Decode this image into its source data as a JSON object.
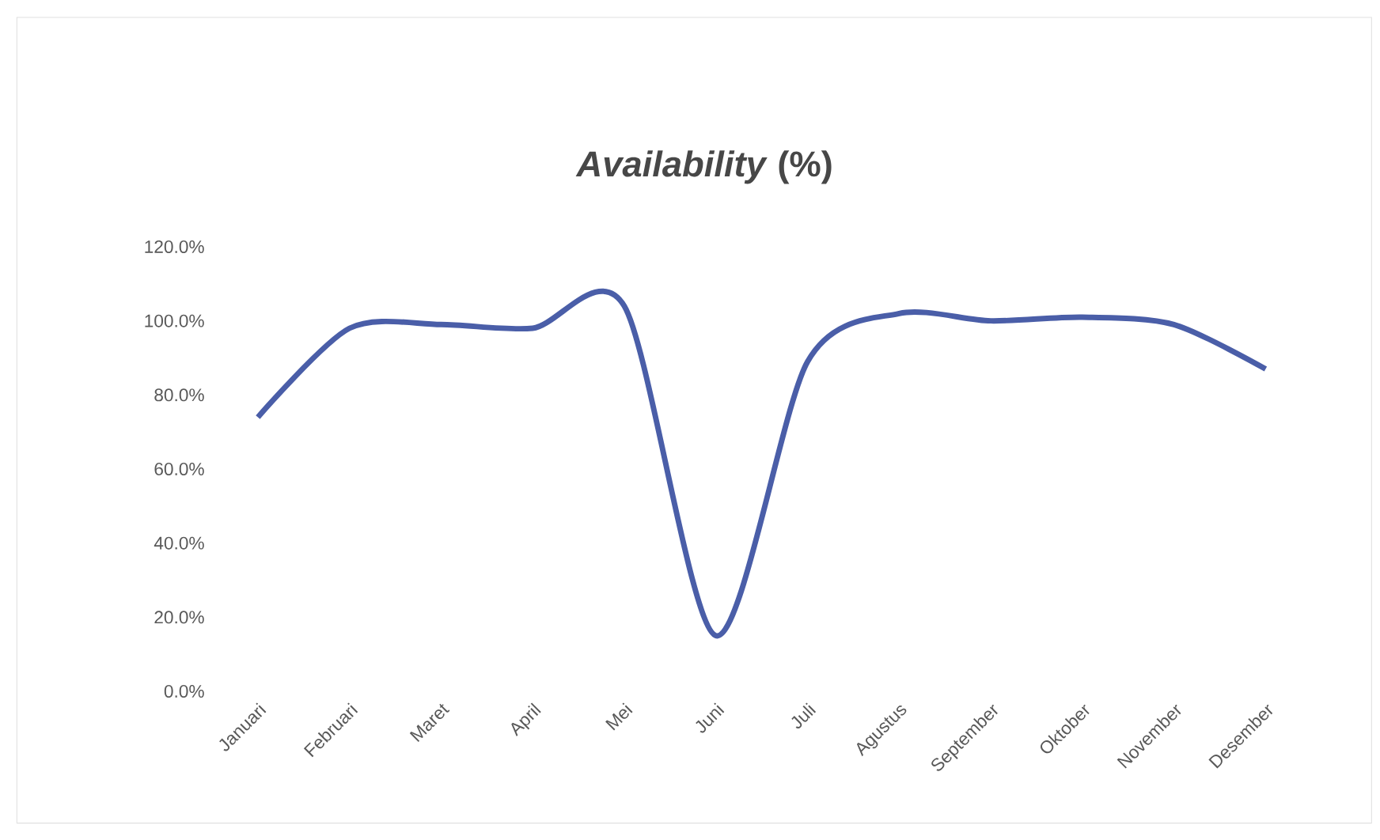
{
  "chart_data": {
    "type": "line",
    "title": "*Availability* (%)",
    "categories": [
      "Januari",
      "Februari",
      "Maret",
      "April",
      "Mei",
      "Juni",
      "Juli",
      "Agustus",
      "September",
      "Oktober",
      "November",
      "Desember"
    ],
    "series": [
      {
        "color": "#4a5ea8",
        "values": [
          74,
          98,
          99,
          98,
          104,
          15,
          89,
          102,
          100,
          101,
          99,
          87
        ]
      }
    ],
    "ylim": [
      0,
      120
    ],
    "yticks": [
      {
        "value": 0,
        "label": "0.0%"
      },
      {
        "value": 20,
        "label": "20.0%"
      },
      {
        "value": 40,
        "label": "40.0%"
      },
      {
        "value": 60,
        "label": "60.0%"
      },
      {
        "value": 80,
        "label": "80.0%"
      },
      {
        "value": 100,
        "label": "100.0%"
      },
      {
        "value": 120,
        "label": "120.0%"
      }
    ],
    "marker": "none",
    "line_style": "solid"
  }
}
